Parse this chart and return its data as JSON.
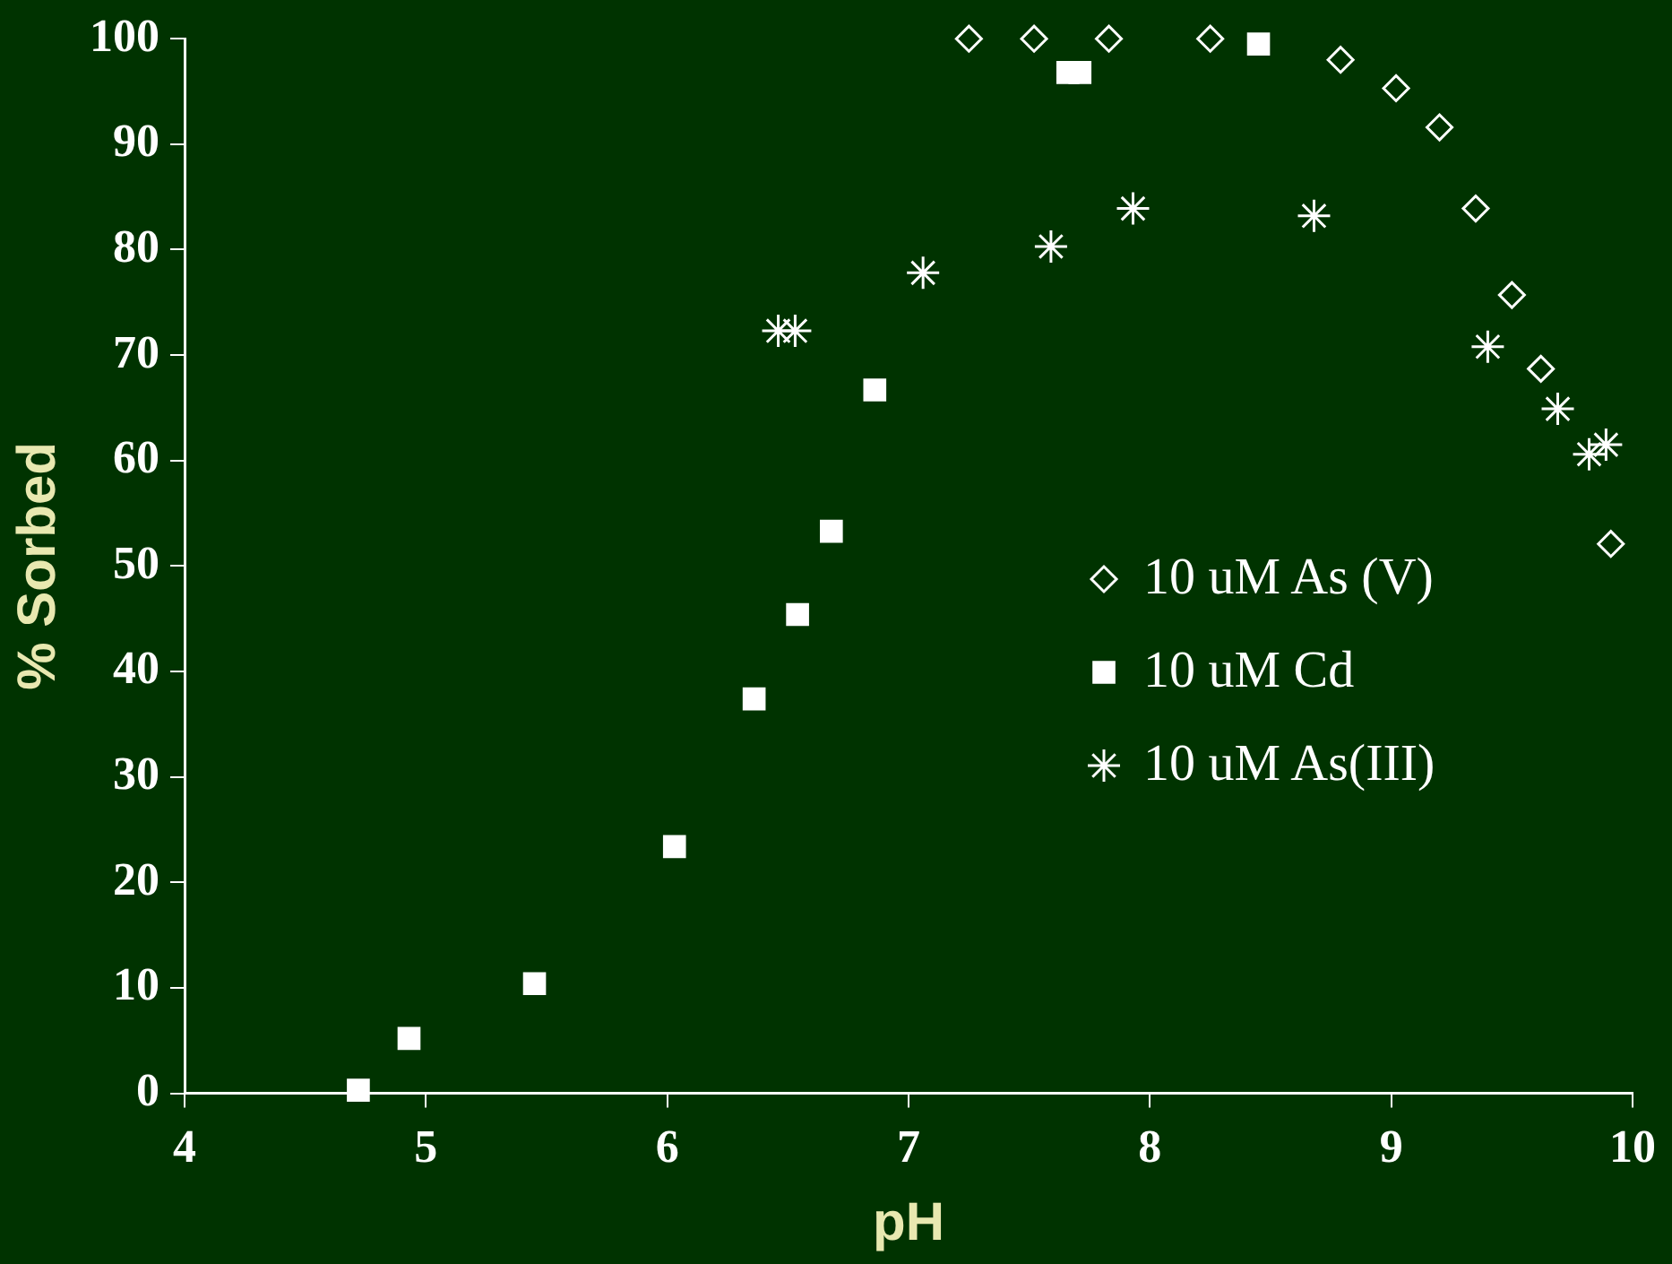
{
  "chart_data": {
    "type": "scatter",
    "xlabel": "pH",
    "ylabel": "% Sorbed",
    "xlim": [
      4,
      10
    ],
    "xticks": [
      4,
      5,
      6,
      7,
      8,
      9,
      10
    ],
    "ylim": [
      0,
      100
    ],
    "yticks": [
      0,
      10,
      20,
      30,
      40,
      50,
      60,
      70,
      80,
      90,
      100
    ],
    "grid": false,
    "legend": "right",
    "series": [
      {
        "name": "10 uM As (V)",
        "color": "#ffffff",
        "marker": "diamond",
        "x": [
          7.25,
          7.52,
          7.83,
          8.25,
          8.79,
          9.02,
          9.2,
          9.35,
          9.5,
          9.62,
          9.91
        ],
        "values": [
          100,
          100,
          100,
          100,
          98,
          95.3,
          91.6,
          83.9,
          75.7,
          68.7,
          52.1
        ]
      },
      {
        "name": "10 uM Cd",
        "color": "#ffffff",
        "marker": "square",
        "x": [
          4.72,
          4.93,
          5.45,
          6.03,
          6.36,
          6.54,
          6.68,
          6.86,
          7.66,
          7.71,
          8.45
        ],
        "values": [
          0.3,
          5.2,
          10.4,
          23.4,
          37.4,
          45.4,
          53.3,
          66.7,
          96.8,
          96.8,
          99.5
        ]
      },
      {
        "name": "10 uM As(III)",
        "color": "#ffffff",
        "marker": "cross",
        "x": [
          6.46,
          6.53,
          7.06,
          7.59,
          7.93,
          8.68,
          9.4,
          9.69,
          9.82,
          9.89
        ],
        "values": [
          72.3,
          72.3,
          77.8,
          80.3,
          83.9,
          83.2,
          70.8,
          64.9,
          60.6,
          61.5
        ]
      }
    ]
  }
}
